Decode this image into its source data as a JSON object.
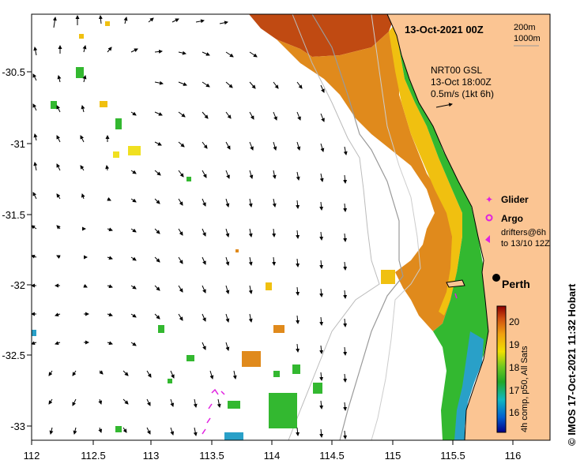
{
  "map": {
    "title": "13-Oct-2021 00Z",
    "depth_legend": [
      "200m",
      "1000m"
    ],
    "current_info": [
      "NRT00 GSL",
      "13-Oct 18:00Z",
      "0.5m/s (1kt 6h)"
    ],
    "x_ticks": [
      "112",
      "112.5",
      "113",
      "113.5",
      "114",
      "114.5",
      "115",
      "115.5",
      "116"
    ],
    "y_ticks": [
      "-30.5",
      "-31",
      "-31.5",
      "-32",
      "-32.5",
      "-33"
    ],
    "legend": {
      "glider": "Glider",
      "argo": "Argo",
      "drifters_line1": "drifters@6h",
      "drifters_line2": "to 13/10 12Z"
    },
    "city": "Perth",
    "credit": "© IMOS 17-Oct-2021 11:32 Hobart",
    "colorbar": {
      "ticks": [
        "20",
        "19",
        "18",
        "17",
        "16"
      ],
      "label": "4h comp, p50, All Sats"
    },
    "colors": {
      "land": "#fbc593",
      "warm": "#e08a1c",
      "hot": "#a8300c",
      "mid": "#f0c010",
      "cool": "#33b830",
      "cold": "#29a0c8",
      "marker": "#e020e0"
    }
  }
}
